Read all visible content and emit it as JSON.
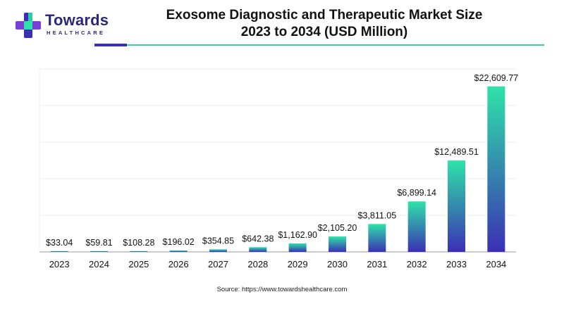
{
  "logo": {
    "name": "Towards",
    "tagline": "HEALTHCARE"
  },
  "chart_data": {
    "type": "bar",
    "title": "Exosome Diagnostic and Therapeutic Market Size\n2023 to 2034 (USD Million)",
    "title_lines": [
      "Exosome Diagnostic and Therapeutic Market Size",
      "2023 to 2034 (USD Million)"
    ],
    "categories": [
      "2023",
      "2024",
      "2025",
      "2026",
      "2027",
      "2028",
      "2029",
      "2030",
      "2031",
      "2032",
      "2033",
      "2034"
    ],
    "values": [
      33.04,
      59.81,
      108.28,
      196.02,
      354.85,
      642.38,
      1162.9,
      2105.2,
      3811.05,
      6899.14,
      12489.51,
      22609.77
    ],
    "labels": [
      "$33.04",
      "$59.81",
      "$108.28",
      "$196.02",
      "$354.85",
      "$642.38",
      "$1,162.90",
      "$2,105.20",
      "$3,811.05",
      "$6,899.14",
      "$12,489.51",
      "$22,609.77"
    ],
    "xlabel": "",
    "ylabel": "",
    "ylim": [
      0,
      25000
    ],
    "grid": true,
    "bar_gradient": {
      "top": "#2ee3a8",
      "bottom": "#3b2fb4"
    }
  },
  "source": "Source: https://www.towardshealthcare.com"
}
